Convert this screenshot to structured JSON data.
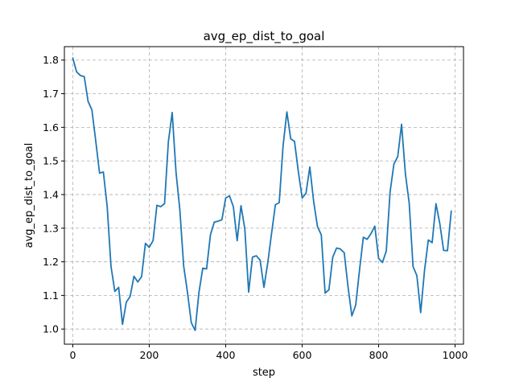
{
  "chart_data": {
    "type": "line",
    "title": "avg_ep_dist_to_goal",
    "xlabel": "step",
    "ylabel": "avg_ep_dist_to_goal",
    "xlim": [
      -22,
      1022
    ],
    "ylim": [
      0.955,
      1.84
    ],
    "xticks": [
      0,
      200,
      400,
      600,
      800,
      1000
    ],
    "yticks": [
      1.0,
      1.1,
      1.2,
      1.3,
      1.4,
      1.5,
      1.6,
      1.7,
      1.8
    ],
    "xtick_labels": [
      "0",
      "200",
      "400",
      "600",
      "800",
      "1000"
    ],
    "ytick_labels": [
      "1.0",
      "1.1",
      "1.2",
      "1.3",
      "1.4",
      "1.5",
      "1.6",
      "1.7",
      "1.8"
    ],
    "grid": true,
    "line_color": "#1f77b4",
    "series": [
      {
        "x": [
          0,
          10,
          20,
          30,
          40,
          50,
          60,
          70,
          80,
          90,
          100,
          110,
          120,
          130,
          140,
          150,
          160,
          170,
          180,
          190,
          200,
          210,
          220,
          230,
          240,
          250,
          260,
          270,
          280,
          290,
          300,
          310,
          320,
          330,
          340,
          350,
          360,
          370,
          380,
          390,
          400,
          410,
          420,
          430,
          440,
          450,
          460,
          470,
          480,
          490,
          500,
          510,
          520,
          530,
          540,
          550,
          560,
          570,
          580,
          590,
          600,
          610,
          620,
          630,
          640,
          650,
          660,
          670,
          680,
          690,
          700,
          710,
          720,
          730,
          740,
          750,
          760,
          770,
          780,
          790,
          800,
          810,
          820,
          830,
          840,
          850,
          860,
          870,
          880,
          890,
          900,
          910,
          920,
          930,
          940,
          950,
          960,
          970,
          980,
          990
        ],
        "values": [
          1.806,
          1.765,
          1.754,
          1.751,
          1.677,
          1.652,
          1.56,
          1.464,
          1.467,
          1.364,
          1.186,
          1.112,
          1.124,
          1.014,
          1.08,
          1.097,
          1.157,
          1.14,
          1.156,
          1.255,
          1.243,
          1.263,
          1.368,
          1.364,
          1.373,
          1.557,
          1.644,
          1.467,
          1.355,
          1.188,
          1.109,
          1.019,
          0.996,
          1.109,
          1.181,
          1.179,
          1.28,
          1.318,
          1.321,
          1.325,
          1.39,
          1.396,
          1.364,
          1.263,
          1.367,
          1.298,
          1.11,
          1.214,
          1.218,
          1.205,
          1.124,
          1.197,
          1.285,
          1.37,
          1.376,
          1.544,
          1.646,
          1.566,
          1.558,
          1.468,
          1.39,
          1.404,
          1.482,
          1.38,
          1.305,
          1.28,
          1.107,
          1.117,
          1.214,
          1.241,
          1.238,
          1.227,
          1.125,
          1.039,
          1.071,
          1.175,
          1.273,
          1.267,
          1.284,
          1.306,
          1.21,
          1.198,
          1.232,
          1.408,
          1.491,
          1.513,
          1.609,
          1.462,
          1.374,
          1.186,
          1.159,
          1.049,
          1.174,
          1.265,
          1.257,
          1.373,
          1.314,
          1.234,
          1.233,
          1.351
        ]
      }
    ]
  }
}
